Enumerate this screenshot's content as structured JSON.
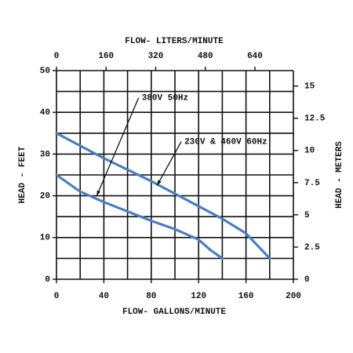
{
  "chart_data": {
    "type": "line",
    "x_label": "FLOW- GALLONS/MINUTE",
    "x2_label": "FLOW- LITERS/MINUTE",
    "y_label": "HEAD - FEET",
    "y2_label": "HEAD - METERS",
    "xlim": [
      0,
      200
    ],
    "xticks": [
      0,
      40,
      80,
      120,
      160,
      200
    ],
    "x2lim": [
      0,
      764
    ],
    "x2ticks": [
      0,
      160,
      320,
      480,
      640
    ],
    "ylim": [
      0,
      50
    ],
    "yticks": [
      0,
      10,
      20,
      30,
      40,
      50
    ],
    "y2lim": [
      0,
      16.2
    ],
    "y2ticks": [
      0,
      2.5,
      5,
      7.5,
      10,
      12.5,
      15
    ],
    "xgrid": [
      0,
      20,
      40,
      60,
      80,
      100,
      120,
      140,
      160,
      180,
      200
    ],
    "ygrid": [
      0,
      5,
      10,
      15,
      20,
      25,
      30,
      35,
      40,
      45,
      50
    ],
    "grid": true,
    "series": [
      {
        "name": "230V & 460V 60Hz",
        "color": "#4a7fc1",
        "x": [
          0,
          40,
          80,
          120,
          140,
          160,
          170,
          180
        ],
        "values": [
          35,
          29,
          23.5,
          17.5,
          14.5,
          11,
          8,
          5
        ],
        "label_at": [
          108,
          33
        ],
        "arrow_to": [
          85,
          22.5
        ]
      },
      {
        "name": "380V 50Hz",
        "color": "#4a7fc1",
        "x": [
          0,
          20,
          40,
          80,
          100,
          120,
          130,
          140
        ],
        "values": [
          25,
          21,
          18.5,
          14,
          12,
          9.5,
          7,
          5
        ],
        "label_at": [
          72,
          43.5
        ],
        "arrow_to": [
          34,
          20
        ]
      }
    ]
  }
}
